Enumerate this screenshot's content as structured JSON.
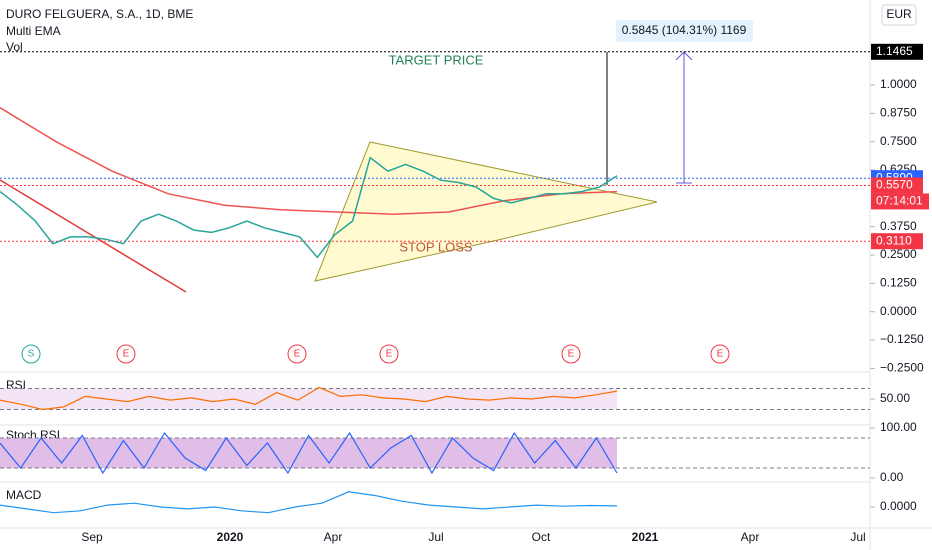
{
  "header": {
    "title": "DURO FELGUERA, S.A., 1D, BME",
    "lines": [
      "Multi EMA",
      "Vol"
    ],
    "currency": "EUR"
  },
  "chart_data": {
    "type": "line",
    "ylim": [
      -0.25,
      1.375
    ],
    "yticks": [
      {
        "value": 1,
        "label": "1.0000"
      },
      {
        "value": 0.875,
        "label": "0.8750"
      },
      {
        "value": 0.75,
        "label": "0.7500"
      },
      {
        "value": 0.625,
        "label": "0.6250"
      },
      {
        "value": 0.375,
        "label": "0.3750"
      },
      {
        "value": 0.25,
        "label": "0.2500"
      },
      {
        "value": 0.125,
        "label": "0.1250"
      },
      {
        "value": 0,
        "label": "0.0000"
      },
      {
        "value": -0.125,
        "label": "−0.1250"
      },
      {
        "value": -0.25,
        "label": "−0.2500"
      }
    ],
    "price": [
      0.53,
      0.47,
      0.4,
      0.3,
      0.33,
      0.33,
      0.32,
      0.3,
      0.4,
      0.43,
      0.4,
      0.36,
      0.35,
      0.37,
      0.4,
      0.37,
      0.35,
      0.33,
      0.24,
      0.34,
      0.4,
      0.68,
      0.62,
      0.65,
      0.62,
      0.58,
      0.57,
      0.55,
      0.5,
      0.48,
      0.5,
      0.52,
      0.52,
      0.53,
      0.55,
      0.6
    ],
    "ema": [
      0.9,
      0.75,
      0.62,
      0.52,
      0.47,
      0.45,
      0.44,
      0.43,
      0.44,
      0.49,
      0.52,
      0.53
    ],
    "price_labels": [
      {
        "value": 1.1465,
        "label": "1.1465",
        "color": "#000000"
      },
      {
        "value": 0.589,
        "label": "0.5890",
        "color": "#2962ff"
      },
      {
        "value": 0.557,
        "label": "0.5570",
        "color": "#f23645"
      },
      {
        "value": 0.311,
        "label": "0.3110",
        "color": "#f23645"
      }
    ],
    "countdown": "07:14:01",
    "annotations": {
      "target": "TARGET PRICE",
      "stop": "STOP LOSS",
      "measure": "0.5845 (104.31%) 1169"
    },
    "xticks": [
      "Sep",
      "2020",
      "Apr",
      "Jul",
      "Oct",
      "2021",
      "Apr",
      "Jul"
    ],
    "events": [
      "S",
      "E",
      "E",
      "E",
      "E",
      "E"
    ],
    "panes": [
      {
        "name": "RSI",
        "ylim": [
          10,
          90
        ],
        "levels": [
          70,
          30
        ],
        "ticks": [
          {
            "value": 50,
            "label": "50.00"
          }
        ],
        "values": [
          48,
          40,
          30,
          35,
          55,
          50,
          45,
          55,
          48,
          52,
          45,
          50,
          40,
          62,
          48,
          72,
          55,
          58,
          52,
          50,
          45,
          55,
          50,
          48,
          52,
          50,
          55,
          52,
          58,
          65
        ]
      },
      {
        "name": "Stoch RSI",
        "ylim": [
          0,
          100
        ],
        "levels": [
          80,
          20
        ],
        "ticks": [
          {
            "value": 100,
            "label": "100.00"
          },
          {
            "value": 0,
            "label": "0.00"
          }
        ],
        "values": [
          70,
          20,
          80,
          30,
          85,
          10,
          75,
          20,
          90,
          40,
          15,
          80,
          25,
          70,
          10,
          85,
          30,
          90,
          20,
          60,
          85,
          10,
          80,
          40,
          15,
          90,
          30,
          75,
          20,
          80,
          10
        ]
      },
      {
        "name": "MACD",
        "ylim": [
          -0.05,
          0.05
        ],
        "levels": [],
        "ticks": [
          {
            "value": 0,
            "label": "0.0000"
          }
        ],
        "values": [
          0.005,
          -0.005,
          -0.015,
          -0.01,
          0.005,
          0.01,
          0.0,
          -0.005,
          0.0,
          -0.01,
          -0.015,
          0.0,
          0.01,
          0.04,
          0.03,
          0.015,
          0.005,
          0.0,
          -0.005,
          0.0,
          0.005,
          0.002,
          0.004,
          0.003
        ]
      }
    ]
  }
}
